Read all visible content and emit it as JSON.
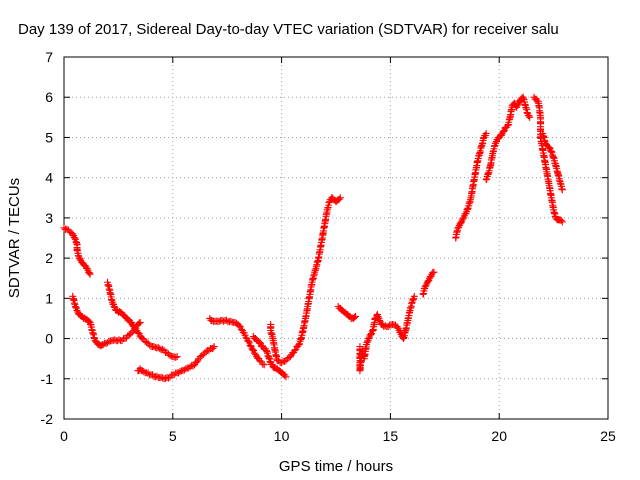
{
  "chart_data": {
    "type": "scatter",
    "title": "Day 139 of 2017, Sidereal Day-to-day VTEC variation (SDTVAR) for receiver salu",
    "xlabel": "GPS time / hours",
    "ylabel": "SDTVAR / TECUs",
    "xlim": [
      0,
      25
    ],
    "ylim": [
      -2,
      7
    ],
    "xticks": [
      "0",
      "5",
      "10",
      "15",
      "20",
      "25"
    ],
    "yticks": [
      "-2",
      "-1",
      "0",
      "1",
      "2",
      "3",
      "4",
      "5",
      "6",
      "7"
    ],
    "grid": true,
    "marker": "plus",
    "series": [
      {
        "name": "SDTVAR",
        "color": "#ff0000",
        "segments": [
          [
            [
              0.0,
              2.75
            ],
            [
              0.2,
              2.7
            ],
            [
              0.4,
              2.6
            ],
            [
              0.5,
              2.5
            ],
            [
              0.6,
              2.35
            ],
            [
              0.6,
              2.2
            ],
            [
              0.7,
              2.0
            ],
            [
              0.8,
              1.9
            ],
            [
              0.9,
              1.85
            ],
            [
              1.0,
              1.8
            ],
            [
              1.1,
              1.7
            ],
            [
              1.2,
              1.6
            ]
          ],
          [
            [
              0.4,
              1.05
            ],
            [
              0.5,
              0.85
            ],
            [
              0.6,
              0.7
            ],
            [
              0.7,
              0.6
            ],
            [
              0.8,
              0.55
            ],
            [
              0.9,
              0.5
            ],
            [
              1.0,
              0.48
            ],
            [
              1.1,
              0.45
            ],
            [
              1.2,
              0.4
            ],
            [
              1.3,
              0.2
            ],
            [
              1.4,
              0.0
            ],
            [
              1.5,
              -0.1
            ],
            [
              1.6,
              -0.15
            ],
            [
              1.7,
              -0.18
            ],
            [
              1.8,
              -0.15
            ],
            [
              2.0,
              -0.1
            ],
            [
              2.2,
              -0.05
            ],
            [
              2.4,
              -0.05
            ],
            [
              2.6,
              -0.05
            ],
            [
              2.8,
              0.0
            ],
            [
              3.0,
              0.1
            ],
            [
              3.2,
              0.2
            ],
            [
              3.4,
              0.35
            ],
            [
              3.5,
              0.4
            ]
          ],
          [
            [
              2.0,
              1.4
            ],
            [
              2.1,
              1.2
            ],
            [
              2.2,
              0.95
            ],
            [
              2.3,
              0.8
            ],
            [
              2.4,
              0.7
            ],
            [
              2.5,
              0.65
            ],
            [
              2.6,
              0.65
            ],
            [
              2.7,
              0.6
            ],
            [
              2.8,
              0.55
            ],
            [
              2.9,
              0.5
            ],
            [
              3.0,
              0.45
            ],
            [
              3.1,
              0.4
            ],
            [
              3.2,
              0.3
            ],
            [
              3.4,
              0.15
            ],
            [
              3.6,
              0.0
            ],
            [
              3.8,
              -0.1
            ],
            [
              4.0,
              -0.2
            ],
            [
              4.2,
              -0.22
            ],
            [
              4.4,
              -0.25
            ],
            [
              4.6,
              -0.3
            ],
            [
              4.8,
              -0.38
            ],
            [
              5.0,
              -0.45
            ],
            [
              5.2,
              -0.45
            ]
          ],
          [
            [
              3.4,
              -0.8
            ],
            [
              3.5,
              -0.75
            ],
            [
              3.6,
              -0.8
            ],
            [
              3.8,
              -0.85
            ],
            [
              4.0,
              -0.9
            ],
            [
              4.2,
              -0.95
            ],
            [
              4.4,
              -0.97
            ],
            [
              4.6,
              -1.0
            ],
            [
              4.8,
              -0.98
            ],
            [
              5.0,
              -0.9
            ],
            [
              5.2,
              -0.85
            ],
            [
              5.4,
              -0.8
            ],
            [
              5.6,
              -0.75
            ],
            [
              5.8,
              -0.7
            ],
            [
              6.0,
              -0.65
            ],
            [
              6.2,
              -0.5
            ],
            [
              6.4,
              -0.4
            ],
            [
              6.6,
              -0.3
            ],
            [
              6.8,
              -0.25
            ],
            [
              6.9,
              -0.2
            ]
          ],
          [
            [
              6.7,
              0.5
            ],
            [
              6.8,
              0.45
            ],
            [
              7.0,
              0.43
            ],
            [
              7.2,
              0.45
            ],
            [
              7.4,
              0.45
            ],
            [
              7.6,
              0.42
            ],
            [
              7.8,
              0.4
            ],
            [
              8.0,
              0.35
            ],
            [
              8.2,
              0.2
            ],
            [
              8.4,
              0.0
            ],
            [
              8.6,
              -0.2
            ],
            [
              8.8,
              -0.4
            ],
            [
              9.0,
              -0.55
            ],
            [
              9.2,
              -0.65
            ]
          ],
          [
            [
              8.7,
              0.05
            ],
            [
              8.8,
              0.0
            ],
            [
              8.9,
              -0.05
            ],
            [
              9.0,
              -0.1
            ],
            [
              9.1,
              -0.2
            ],
            [
              9.2,
              -0.25
            ],
            [
              9.3,
              -0.3
            ],
            [
              9.4,
              -0.45
            ],
            [
              9.5,
              -0.6
            ],
            [
              9.6,
              -0.7
            ],
            [
              9.7,
              -0.72
            ],
            [
              9.8,
              -0.75
            ],
            [
              9.9,
              -0.8
            ],
            [
              10.0,
              -0.85
            ],
            [
              10.1,
              -0.9
            ],
            [
              10.2,
              -0.95
            ]
          ],
          [
            [
              9.5,
              0.35
            ],
            [
              9.5,
              0.2
            ],
            [
              9.6,
              0.0
            ],
            [
              9.7,
              -0.3
            ],
            [
              9.8,
              -0.55
            ],
            [
              10.0,
              -0.6
            ],
            [
              10.2,
              -0.55
            ],
            [
              10.4,
              -0.45
            ],
            [
              10.6,
              -0.3
            ],
            [
              10.8,
              -0.15
            ],
            [
              10.9,
              0.0
            ],
            [
              11.0,
              0.25
            ],
            [
              11.1,
              0.5
            ],
            [
              11.2,
              0.8
            ],
            [
              11.3,
              1.1
            ],
            [
              11.4,
              1.4
            ],
            [
              11.5,
              1.6
            ],
            [
              11.6,
              1.8
            ],
            [
              11.7,
              2.0
            ],
            [
              11.8,
              2.3
            ],
            [
              11.9,
              2.6
            ],
            [
              12.0,
              2.9
            ],
            [
              12.1,
              3.2
            ],
            [
              12.2,
              3.4
            ],
            [
              12.3,
              3.5
            ],
            [
              12.4,
              3.45
            ],
            [
              12.5,
              3.4
            ],
            [
              12.6,
              3.45
            ],
            [
              12.7,
              3.5
            ]
          ],
          [
            [
              12.6,
              0.8
            ],
            [
              12.7,
              0.75
            ],
            [
              12.8,
              0.7
            ],
            [
              12.9,
              0.65
            ],
            [
              13.0,
              0.6
            ],
            [
              13.1,
              0.55
            ],
            [
              13.2,
              0.5
            ],
            [
              13.3,
              0.5
            ],
            [
              13.4,
              0.55
            ]
          ],
          [
            [
              13.6,
              -0.2
            ],
            [
              13.6,
              -0.4
            ],
            [
              13.6,
              -0.55
            ],
            [
              13.6,
              -0.8
            ],
            [
              13.7,
              -0.3
            ],
            [
              13.8,
              -0.5
            ],
            [
              13.9,
              -0.15
            ],
            [
              14.0,
              0.0
            ],
            [
              14.1,
              0.1
            ],
            [
              14.2,
              0.2
            ],
            [
              14.3,
              0.5
            ],
            [
              14.4,
              0.6
            ],
            [
              14.5,
              0.45
            ],
            [
              14.6,
              0.35
            ],
            [
              14.7,
              0.3
            ],
            [
              14.9,
              0.3
            ],
            [
              15.1,
              0.35
            ],
            [
              15.3,
              0.3
            ],
            [
              15.4,
              0.2
            ],
            [
              15.5,
              0.1
            ],
            [
              15.6,
              0.0
            ],
            [
              15.7,
              0.2
            ],
            [
              15.8,
              0.45
            ],
            [
              15.9,
              0.7
            ],
            [
              16.0,
              0.9
            ],
            [
              16.1,
              1.05
            ]
          ],
          [
            [
              16.5,
              1.1
            ],
            [
              16.6,
              1.3
            ],
            [
              16.7,
              1.4
            ],
            [
              16.8,
              1.5
            ],
            [
              16.9,
              1.6
            ],
            [
              17.0,
              1.65
            ]
          ],
          [
            [
              18.0,
              2.5
            ],
            [
              18.1,
              2.75
            ],
            [
              18.2,
              2.85
            ],
            [
              18.3,
              2.95
            ],
            [
              18.4,
              3.05
            ],
            [
              18.5,
              3.15
            ],
            [
              18.6,
              3.3
            ],
            [
              18.7,
              3.5
            ],
            [
              18.8,
              3.8
            ],
            [
              18.9,
              4.1
            ],
            [
              19.0,
              4.4
            ],
            [
              19.1,
              4.6
            ],
            [
              19.2,
              4.8
            ],
            [
              19.3,
              5.0
            ],
            [
              19.4,
              5.1
            ]
          ],
          [
            [
              19.4,
              3.95
            ],
            [
              19.5,
              4.1
            ],
            [
              19.6,
              4.3
            ],
            [
              19.7,
              4.6
            ],
            [
              19.8,
              4.8
            ],
            [
              19.9,
              4.95
            ],
            [
              20.0,
              5.0
            ],
            [
              20.1,
              5.05
            ],
            [
              20.2,
              5.15
            ],
            [
              20.3,
              5.25
            ],
            [
              20.4,
              5.3
            ],
            [
              20.5,
              5.5
            ],
            [
              20.6,
              5.8
            ],
            [
              20.7,
              5.85
            ],
            [
              20.8,
              5.75
            ],
            [
              20.9,
              5.85
            ],
            [
              21.0,
              5.95
            ],
            [
              21.1,
              6.0
            ],
            [
              21.2,
              5.8
            ],
            [
              21.3,
              5.6
            ],
            [
              21.4,
              5.5
            ]
          ],
          [
            [
              21.6,
              6.0
            ],
            [
              21.7,
              5.95
            ],
            [
              21.8,
              5.9
            ],
            [
              21.9,
              5.5
            ],
            [
              21.9,
              5.0
            ],
            [
              22.0,
              4.7
            ],
            [
              22.1,
              4.4
            ],
            [
              22.2,
              4.1
            ],
            [
              22.3,
              3.8
            ],
            [
              22.4,
              3.5
            ],
            [
              22.5,
              3.2
            ],
            [
              22.6,
              3.0
            ],
            [
              22.7,
              2.95
            ],
            [
              22.8,
              2.95
            ],
            [
              22.9,
              2.9
            ]
          ],
          [
            [
              22.0,
              5.1
            ],
            [
              22.1,
              4.9
            ],
            [
              22.2,
              4.8
            ],
            [
              22.3,
              4.75
            ],
            [
              22.4,
              4.65
            ],
            [
              22.5,
              4.5
            ],
            [
              22.6,
              4.3
            ],
            [
              22.7,
              4.1
            ],
            [
              22.8,
              3.9
            ],
            [
              22.9,
              3.7
            ]
          ]
        ]
      }
    ]
  }
}
